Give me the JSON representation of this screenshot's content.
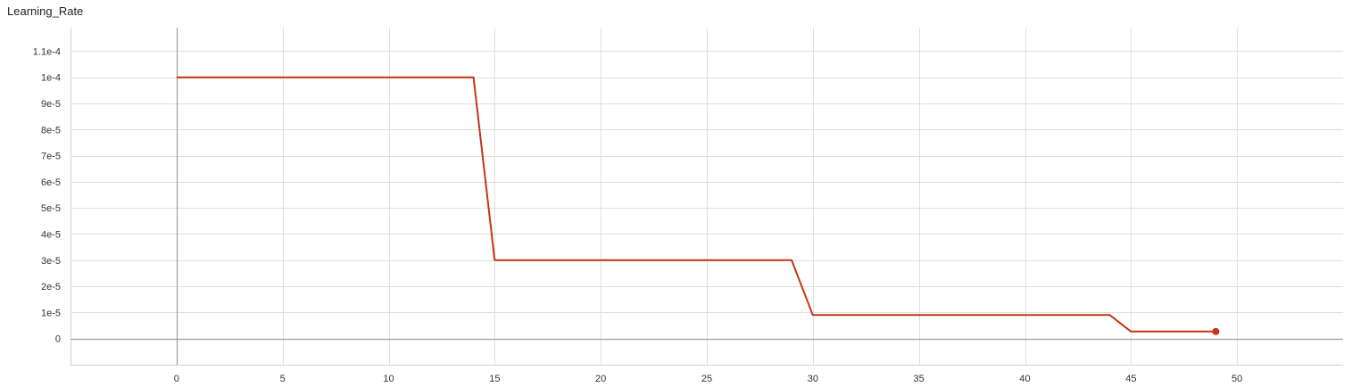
{
  "chart_data": {
    "type": "line",
    "title": "Learning_Rate",
    "xlabel": "",
    "ylabel": "",
    "xlim": [
      -5,
      55
    ],
    "ylim": [
      -1e-05,
      0.000119
    ],
    "x_ticks": [
      0,
      5,
      10,
      15,
      20,
      25,
      30,
      35,
      40,
      45,
      50
    ],
    "x_tick_labels": [
      "0",
      "5",
      "10",
      "15",
      "20",
      "25",
      "30",
      "35",
      "40",
      "45",
      "50"
    ],
    "y_ticks": [
      0,
      1e-05,
      2e-05,
      3e-05,
      4e-05,
      5e-05,
      6e-05,
      7e-05,
      8e-05,
      9e-05,
      0.0001,
      0.00011
    ],
    "y_tick_labels": [
      "0",
      "1e-5",
      "2e-5",
      "3e-5",
      "4e-5",
      "5e-5",
      "6e-5",
      "7e-5",
      "8e-5",
      "9e-5",
      "1e-4",
      "1.1e-4"
    ],
    "grid": true,
    "series": [
      {
        "color": "#c23616",
        "x": [
          0,
          14,
          15,
          29,
          30,
          44,
          45,
          49
        ],
        "y": [
          0.0001,
          0.0001,
          3e-05,
          3e-05,
          9e-06,
          9e-06,
          2.7e-06,
          2.7e-06
        ]
      }
    ]
  }
}
